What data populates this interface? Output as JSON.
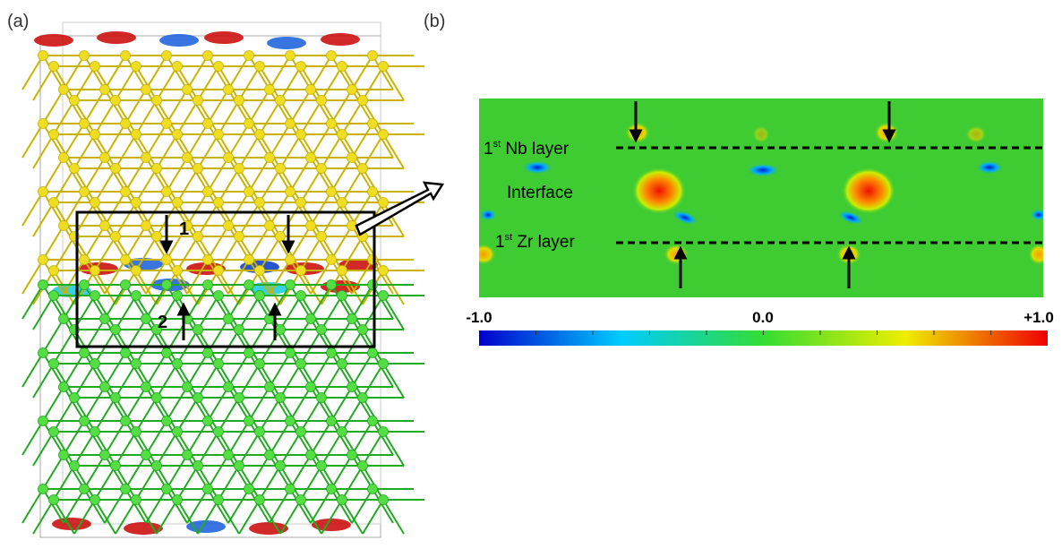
{
  "panels": {
    "a": {
      "label": "(a)",
      "site_labels": [
        "1",
        "2"
      ]
    },
    "b": {
      "label": "(b)",
      "nb_layer": {
        "number": "1",
        "suffix": "st",
        "text": " Nb layer"
      },
      "interface": "Interface",
      "zr_layer": {
        "number": "1",
        "suffix": "st",
        "text": " Zr layer"
      },
      "colorbar_labels": [
        "-1.0",
        "0.0",
        "+1.0"
      ]
    }
  }
}
